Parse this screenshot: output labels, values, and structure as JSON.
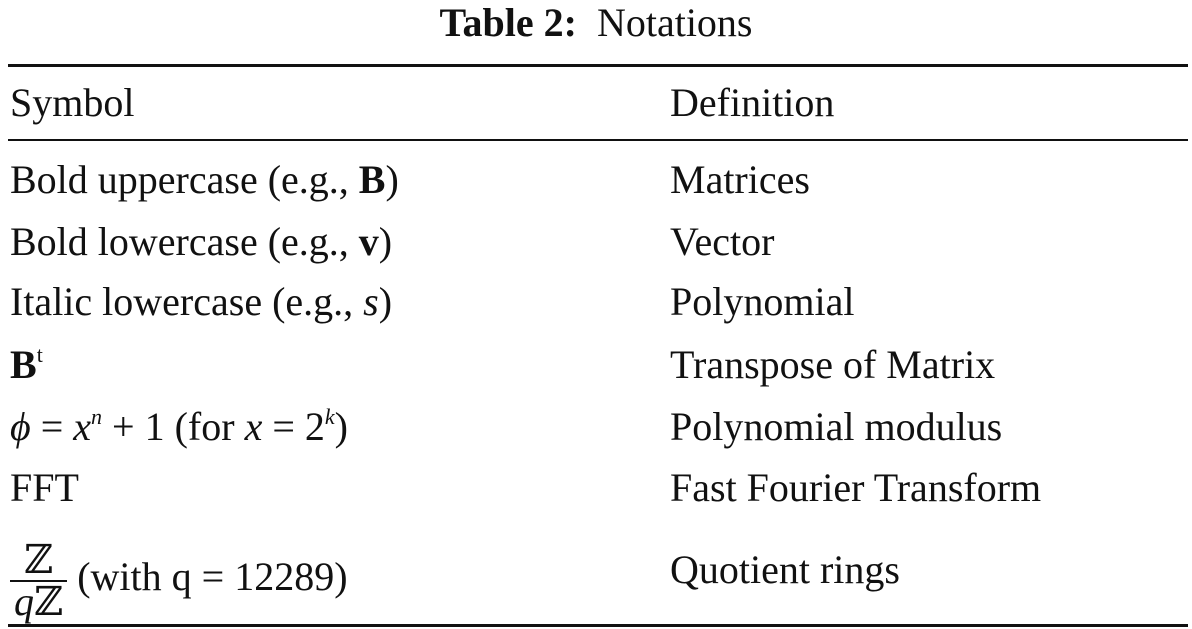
{
  "caption": {
    "label": "Table 2:",
    "text": "Notations"
  },
  "table": {
    "header": [
      "Symbol",
      "Definition"
    ],
    "rows": [
      {
        "symbol": [
          "Bold uppercase (e.g., ",
          "B",
          ")"
        ],
        "definition": "Matrices"
      },
      {
        "symbol": [
          "Bold lowercase (e.g., ",
          "v",
          ")"
        ],
        "definition": "Vector"
      },
      {
        "symbol": [
          "Italic lowercase (e.g., ",
          "s",
          ")"
        ],
        "definition": "Polynomial"
      },
      {
        "symbol": [
          "B",
          "t"
        ],
        "definition": "Transpose of Matrix"
      },
      {
        "symbol": [
          "ϕ",
          " = ",
          "x",
          "n",
          " + 1 (for ",
          "x",
          " = 2",
          "k",
          ")"
        ],
        "definition": "Polynomial modulus"
      },
      {
        "symbol": [
          "FFT"
        ],
        "definition": "Fast Fourier Transform"
      },
      {
        "symbol": [
          "ℤ",
          "q",
          "ℤ",
          " (with q = 12289)"
        ],
        "definition": "Quotient rings"
      }
    ]
  }
}
